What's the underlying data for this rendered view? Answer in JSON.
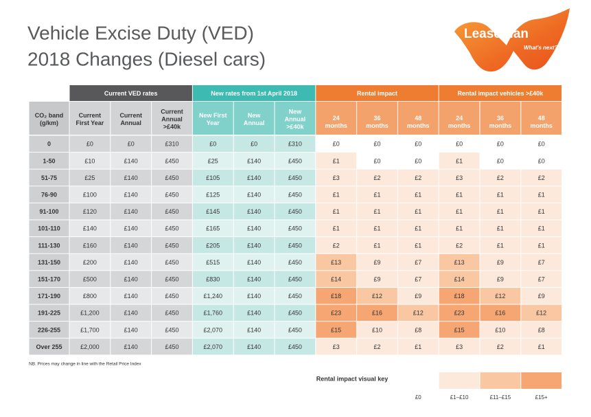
{
  "header": {
    "title_lines": [
      "Vehicle Excise Duty (VED)",
      "2018 Changes (Diesel cars)"
    ]
  },
  "logo": {
    "name": "LeasePlan",
    "tagline": "What's next?"
  },
  "table": {
    "groups": [
      "Current VED rates",
      "New rates from 1st April 2018",
      "Rental impact",
      "Rental impact vehicles >£40k"
    ],
    "columns": [
      [
        "CO₂ band",
        "(g/km)"
      ],
      [
        "Current",
        "First Year"
      ],
      [
        "Current",
        "Annual"
      ],
      [
        "Current",
        "Annual",
        ">£40k"
      ],
      [
        "New First",
        "Year"
      ],
      [
        "New",
        "Annual"
      ],
      [
        "New",
        "Annual",
        ">£40k"
      ],
      [
        "24",
        "months"
      ],
      [
        "36",
        "months"
      ],
      [
        "48",
        "months"
      ],
      [
        "24",
        "months"
      ],
      [
        "36",
        "months"
      ],
      [
        "48",
        "months"
      ]
    ],
    "rows": [
      [
        "0",
        "£0",
        "£0",
        "£310",
        "£0",
        "£0",
        "£310",
        "£0",
        "£0",
        "£0",
        "£0",
        "£0",
        "£0"
      ],
      [
        "1-50",
        "£10",
        "£140",
        "£450",
        "£25",
        "£140",
        "£450",
        "£1",
        "£0",
        "£0",
        "£1",
        "£0",
        "£0"
      ],
      [
        "51-75",
        "£25",
        "£140",
        "£450",
        "£105",
        "£140",
        "£450",
        "£3",
        "£2",
        "£2",
        "£3",
        "£2",
        "£2"
      ],
      [
        "76-90",
        "£100",
        "£140",
        "£450",
        "£125",
        "£140",
        "£450",
        "£1",
        "£1",
        "£1",
        "£1",
        "£1",
        "£1"
      ],
      [
        "91-100",
        "£120",
        "£140",
        "£450",
        "£145",
        "£140",
        "£450",
        "£1",
        "£1",
        "£1",
        "£1",
        "£1",
        "£1"
      ],
      [
        "101-110",
        "£140",
        "£140",
        "£450",
        "£165",
        "£140",
        "£450",
        "£1",
        "£1",
        "£1",
        "£1",
        "£1",
        "£1"
      ],
      [
        "111-130",
        "£160",
        "£140",
        "£450",
        "£205",
        "£140",
        "£450",
        "£2",
        "£1",
        "£1",
        "£2",
        "£1",
        "£1"
      ],
      [
        "131-150",
        "£200",
        "£140",
        "£450",
        "£515",
        "£140",
        "£450",
        "£13",
        "£9",
        "£7",
        "£13",
        "£9",
        "£7"
      ],
      [
        "151-170",
        "£500",
        "£140",
        "£450",
        "£830",
        "£140",
        "£450",
        "£14",
        "£9",
        "£7",
        "£14",
        "£9",
        "£7"
      ],
      [
        "171-190",
        "£800",
        "£140",
        "£450",
        "£1,240",
        "£140",
        "£450",
        "£18",
        "£12",
        "£9",
        "£18",
        "£12",
        "£9"
      ],
      [
        "191-225",
        "£1,200",
        "£140",
        "£450",
        "£1,760",
        "£140",
        "£450",
        "£23",
        "£16",
        "£12",
        "£23",
        "£16",
        "£12"
      ],
      [
        "226-255",
        "£1,700",
        "£140",
        "£450",
        "£2,070",
        "£140",
        "£450",
        "£15",
        "£10",
        "£8",
        "£15",
        "£10",
        "£8"
      ],
      [
        "Over 255",
        "£2,000",
        "£140",
        "£450",
        "£2,070",
        "£140",
        "£450",
        "£3",
        "£2",
        "£1",
        "£3",
        "£2",
        "£1"
      ]
    ]
  },
  "note": "NB. Prices may change in line with the Retail Price Index",
  "key": {
    "title": "Rental impact visual key",
    "labels": [
      "£0",
      "£1–£10",
      "£11–£15",
      "£15+"
    ]
  }
}
